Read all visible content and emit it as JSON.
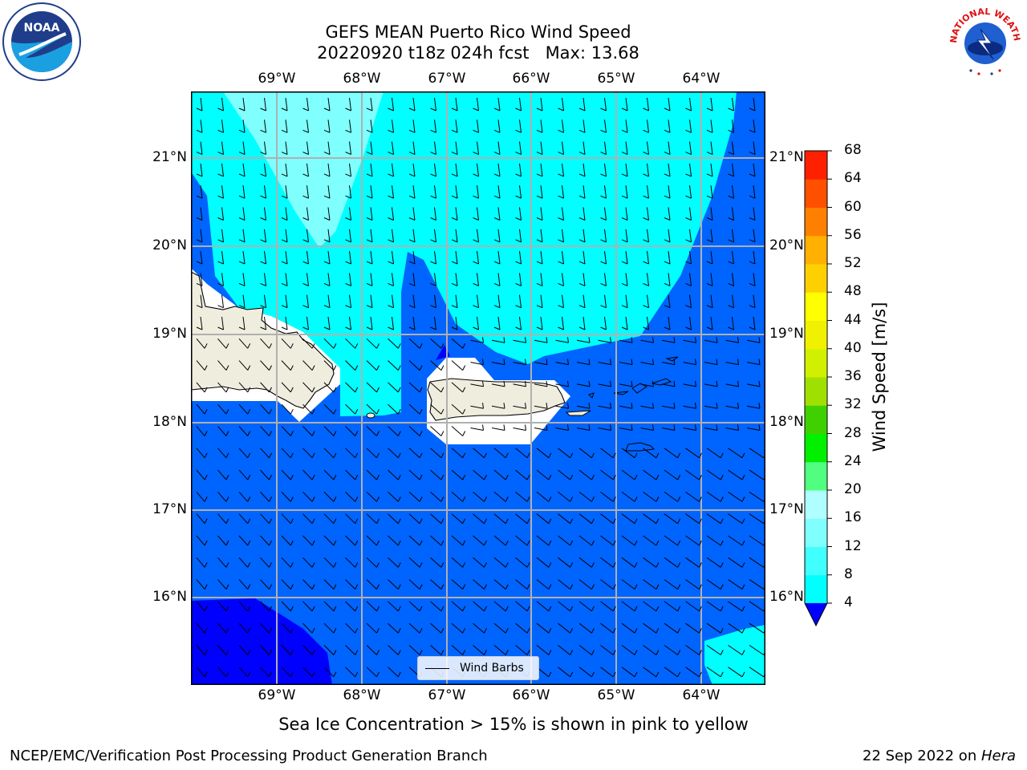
{
  "title": {
    "line1": "GEFS MEAN Puerto Rico Wind Speed",
    "line2": "20220920 t18z 024h fcst   Max: 13.68"
  },
  "map": {
    "lon_labels": [
      "69°W",
      "68°W",
      "67°W",
      "66°W",
      "65°W",
      "64°W"
    ],
    "lat_labels": [
      "21°N",
      "20°N",
      "19°N",
      "18°N",
      "17°N",
      "16°N"
    ],
    "lon_range": [
      -70.0,
      -63.25
    ],
    "lat_range": [
      15.0,
      21.75
    ],
    "land_color": "#efedde",
    "ocean_low_color": "#0064ff",
    "ocean_mid_color": "#00ffff",
    "ocean_high_color": "#80ffff",
    "calm_color": "#0000ff",
    "grid_color": "#b0b0b0"
  },
  "legend": {
    "wind_barbs": "Wind Barbs"
  },
  "colorbar": {
    "title": "Wind Speed [m/s]",
    "ticks": [
      "4",
      "8",
      "12",
      "16",
      "20",
      "24",
      "28",
      "32",
      "36",
      "40",
      "44",
      "48",
      "52",
      "56",
      "60",
      "64",
      "68"
    ],
    "colors": [
      "#0064ff",
      "#00ffff",
      "#40ffff",
      "#80ffff",
      "#b0ffff",
      "#50ff80",
      "#00f000",
      "#40d000",
      "#a0e000",
      "#d0f000",
      "#f0f000",
      "#ffff00",
      "#ffd000",
      "#ffb000",
      "#ff8000",
      "#ff5000",
      "#ff2000",
      "#ff0000"
    ]
  },
  "bottom_note": "Sea Ice Concentration > 15% is shown in pink to yellow",
  "footer": {
    "left": "NCEP/EMC/Verification Post Processing Product Generation Branch",
    "right_date": "22 Sep 2022 on ",
    "right_host": "Hera"
  },
  "logos": {
    "noaa": "NOAA",
    "nws": "NATIONAL WEATHER SERVICE"
  }
}
